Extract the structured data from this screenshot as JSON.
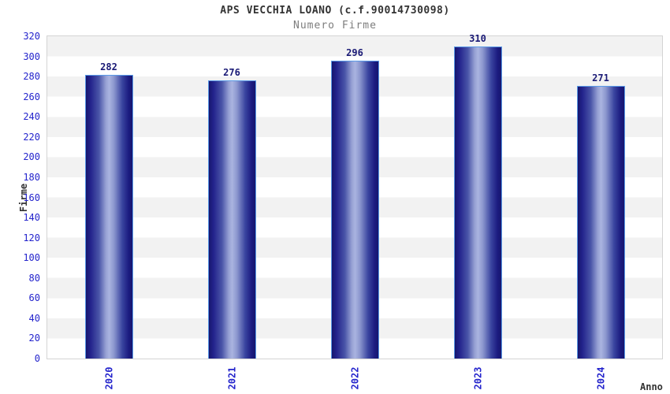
{
  "chart_data": {
    "type": "bar",
    "title": "APS VECCHIA LOANO (c.f.90014730098)",
    "subtitle": "Numero Firme",
    "categories": [
      "2020",
      "2021",
      "2022",
      "2023",
      "2024"
    ],
    "values": [
      282,
      276,
      296,
      310,
      271
    ],
    "xlabel": "Anno",
    "ylabel": "Firme",
    "ylim": [
      0,
      320
    ],
    "ytick_step": 20,
    "grid": "alternating-horizontal-bands",
    "legend": "none",
    "x_tick_rotation_deg": -90,
    "colors": {
      "background": "#ffffff",
      "band": "#f2f2f2",
      "plot_border": "#d4d4d4",
      "bar_dark": "#16166e",
      "bar_light": "#aab4e0",
      "bar_outline": "#5b9be8",
      "tick_text": "#2424cc",
      "value_label_text": "#191975",
      "title_text": "#333333",
      "subtitle_text": "#7d7d7d"
    }
  }
}
